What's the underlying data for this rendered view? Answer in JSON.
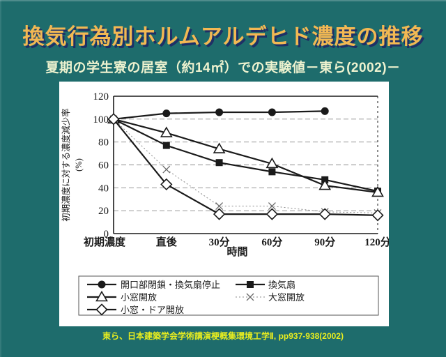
{
  "slide": {
    "title": "換気行為別ホルムアルデヒド濃度の推移",
    "subtitle": "夏期の学生寮の居室（約14㎡）での実験値－東ら(2002)－",
    "citation": "東ら、日本建築学会学術講演梗概集環境工学Ⅱ, pp937-938(2002)"
  },
  "colors": {
    "background": "#1e6c6c",
    "title_text": "#f2b853",
    "title_shadow": "#1f2f66",
    "subtitle_text": "#edf2cf",
    "citation_text": "#e8ed1f",
    "chart_bg": "#ffffff",
    "chart_ink": "#1a1a1a"
  },
  "chart_data": {
    "type": "line",
    "title": "",
    "xlabel": "時間",
    "ylabel": "初期濃度に対する濃度減少率",
    "ylabel_unit": "(%)",
    "ylim": [
      0,
      120
    ],
    "yticks": [
      0,
      20,
      40,
      60,
      80,
      100,
      120
    ],
    "categories": [
      "初期濃度",
      "直後",
      "30分",
      "60分",
      "90分",
      "120分"
    ],
    "grid": true,
    "legend_position": "bottom",
    "series": [
      {
        "name": "開口部閉鎖・換気扇停止",
        "marker": "circle-filled",
        "line": "solid",
        "values": [
          100,
          105,
          106,
          106,
          107,
          null
        ]
      },
      {
        "name": "換気扇",
        "marker": "square-filled",
        "line": "solid",
        "values": [
          100,
          77,
          62,
          54,
          47,
          37
        ]
      },
      {
        "name": "小窓開放",
        "marker": "triangle-open",
        "line": "solid",
        "values": [
          100,
          88,
          74,
          61,
          42,
          36
        ]
      },
      {
        "name": "大窓開放",
        "marker": "x",
        "line": "dashed",
        "values": [
          100,
          56,
          24,
          24,
          19,
          18
        ]
      },
      {
        "name": "小窓・ドア開放",
        "marker": "diamond-open",
        "line": "solid",
        "values": [
          100,
          43,
          17,
          17,
          17,
          16
        ]
      }
    ]
  }
}
